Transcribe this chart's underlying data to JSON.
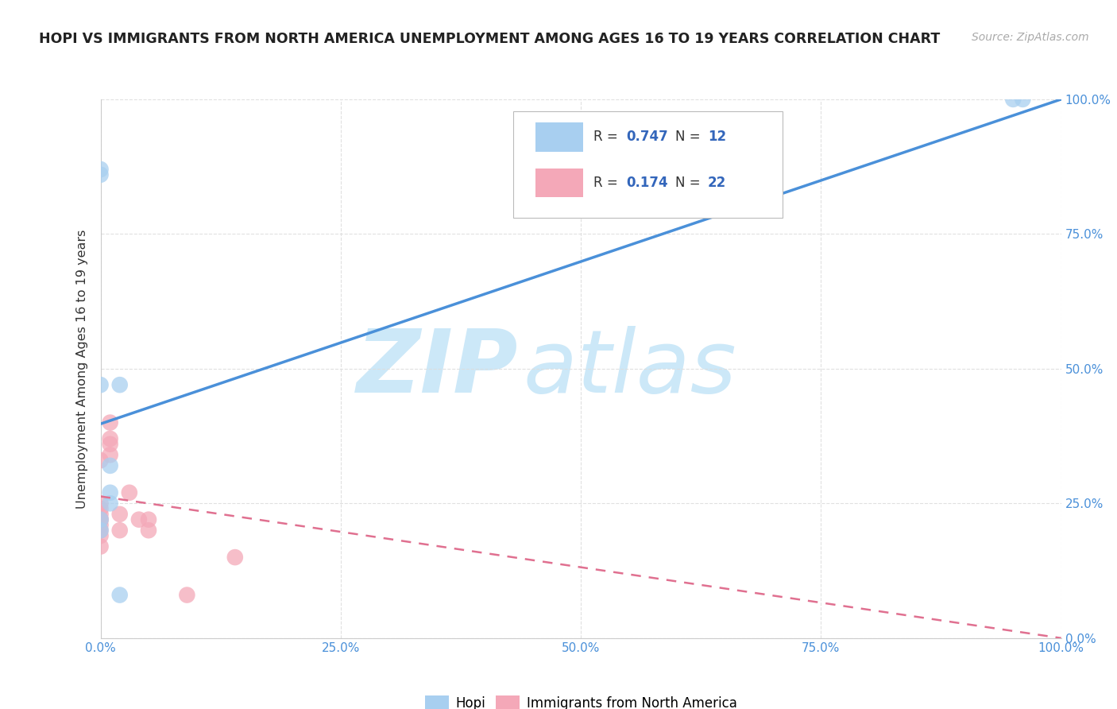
{
  "title": "HOPI VS IMMIGRANTS FROM NORTH AMERICA UNEMPLOYMENT AMONG AGES 16 TO 19 YEARS CORRELATION CHART",
  "source": "Source: ZipAtlas.com",
  "ylabel": "Unemployment Among Ages 16 to 19 years",
  "x_tick_labels": [
    "0.0%",
    "25.0%",
    "50.0%",
    "75.0%",
    "100.0%"
  ],
  "y_tick_labels_right": [
    "0.0%",
    "25.0%",
    "50.0%",
    "75.0%",
    "100.0%"
  ],
  "hopi_color": "#a8cff0",
  "immigrants_color": "#f4a8b8",
  "hopi_R": 0.747,
  "hopi_N": 12,
  "immigrants_R": 0.174,
  "immigrants_N": 22,
  "hopi_scatter_x": [
    0,
    0,
    0,
    0,
    0,
    1,
    1,
    1,
    2,
    2,
    95,
    96
  ],
  "hopi_scatter_y": [
    86,
    87,
    20,
    22,
    47,
    25,
    27,
    32,
    47,
    8,
    100,
    100
  ],
  "immigrants_scatter_x": [
    0,
    0,
    0,
    0,
    0,
    0,
    0,
    0,
    0,
    0,
    1,
    1,
    1,
    1,
    2,
    2,
    3,
    4,
    5,
    5,
    9,
    14
  ],
  "immigrants_scatter_y": [
    17,
    19,
    20,
    21,
    22,
    22,
    23,
    24,
    25,
    33,
    34,
    36,
    37,
    40,
    20,
    23,
    27,
    22,
    20,
    22,
    8,
    15
  ],
  "hopi_line_color": "#4a90d9",
  "immigrants_line_color": "#e07090",
  "background_color": "#ffffff",
  "grid_color": "#dddddd",
  "watermark_zip": "ZIP",
  "watermark_atlas": "atlas",
  "watermark_color": "#cce8f8",
  "legend_color": "#3366bb",
  "tick_color": "#4a90d9"
}
